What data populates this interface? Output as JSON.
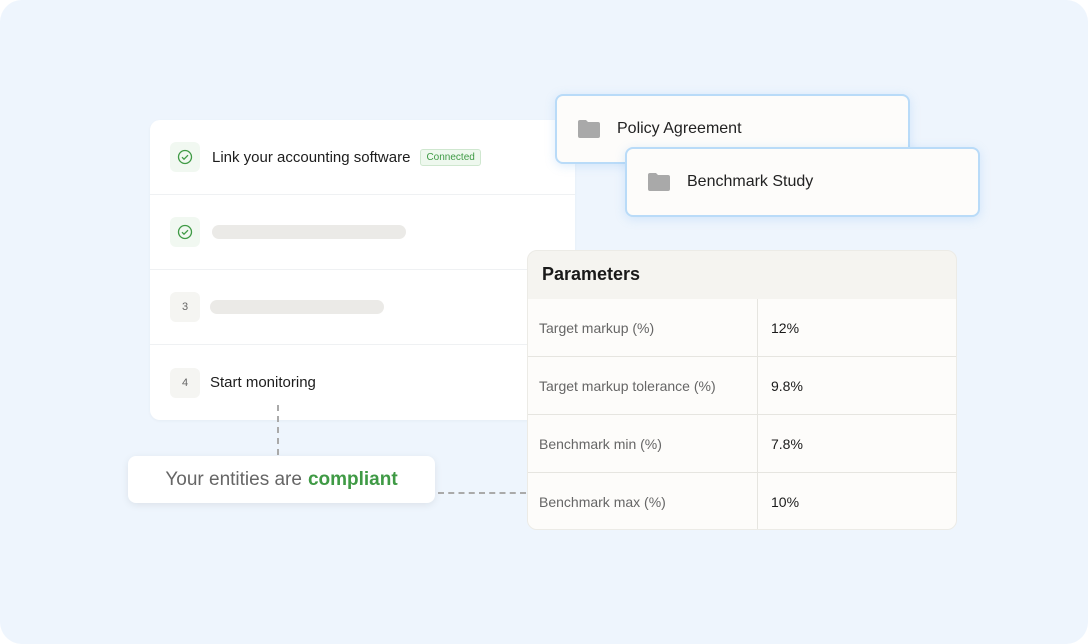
{
  "steps": [
    {
      "number": "",
      "status": "done",
      "label": "Link your accounting software",
      "tag": "Connected"
    },
    {
      "number": "",
      "status": "done",
      "label": "",
      "tag": ""
    },
    {
      "number": "3",
      "status": "pending",
      "label": "",
      "tag": ""
    },
    {
      "number": "4",
      "status": "pending",
      "label": "Start monitoring",
      "tag": ""
    }
  ],
  "folders": [
    "Policy Agreement",
    "Benchmark Study"
  ],
  "parameters": {
    "title": "Parameters",
    "rows": [
      {
        "key": "Target markup (%)",
        "value": "12%"
      },
      {
        "key": "Target markup tolerance (%)",
        "value": "9.8%"
      },
      {
        "key": "Benchmark min (%)",
        "value": "7.8%"
      },
      {
        "key": "Benchmark max (%)",
        "value": "10%"
      }
    ]
  },
  "compliance": {
    "prefix": "Your entities are",
    "status": "compliant"
  },
  "colors": {
    "accent_green": "#3f9a45",
    "background": "#eef5fd",
    "folder_border": "#b9dbf8"
  }
}
